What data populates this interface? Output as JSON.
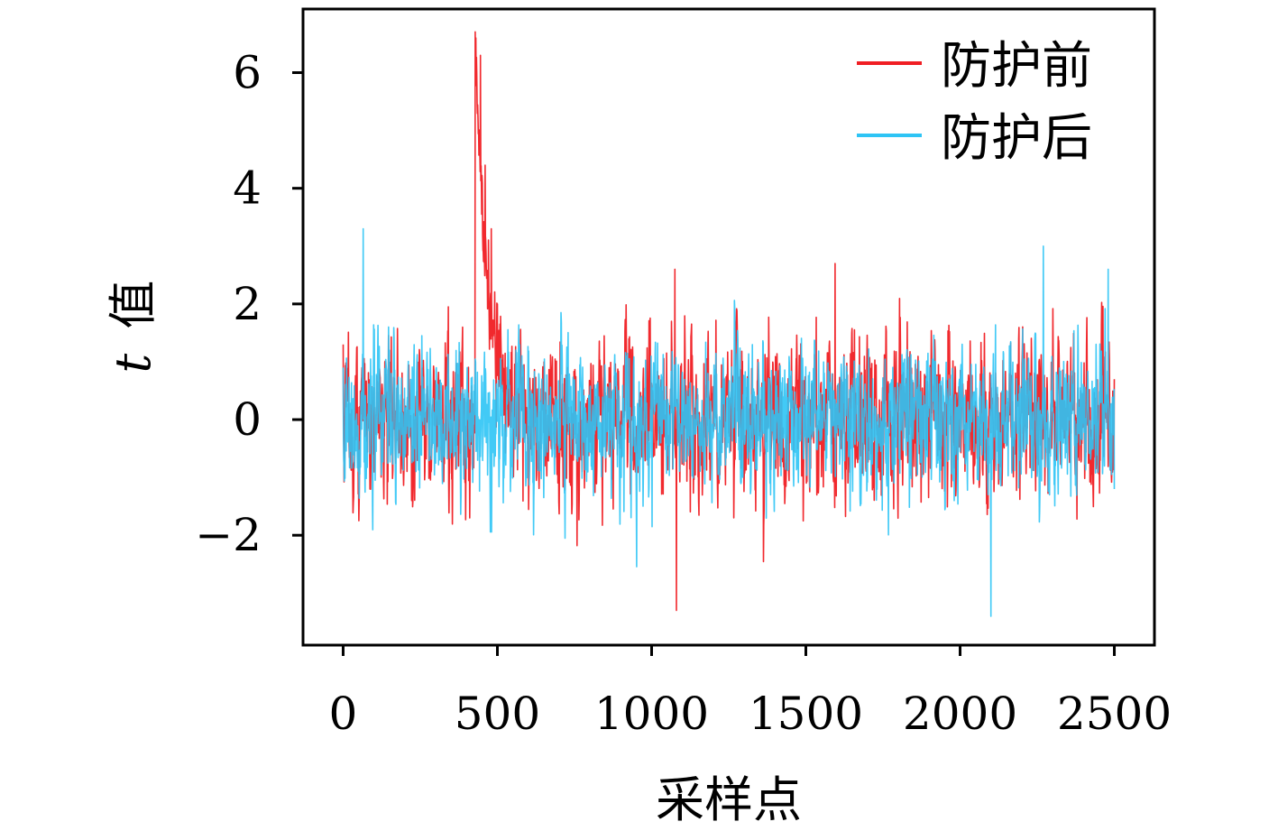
{
  "chart_data": {
    "type": "line",
    "title": "",
    "xlabel": "采样点",
    "ylabel": "t 值",
    "ylabel_italic_part": "t",
    "ylabel_rest": "值",
    "xlim": [
      -130,
      2630
    ],
    "ylim": [
      -3.9,
      7.1
    ],
    "xticks": [
      0,
      500,
      1000,
      1500,
      2000,
      2500
    ],
    "xtick_labels": [
      "0",
      "500",
      "1000",
      "1500",
      "2000",
      "2500"
    ],
    "yticks": [
      -2,
      0,
      2,
      4,
      6
    ],
    "ytick_labels": [
      "−2",
      "0",
      "2",
      "4",
      "6"
    ],
    "grid": false,
    "legend_position": "top-right",
    "n_points": 2500,
    "series": [
      {
        "name": "防护前",
        "color": "#f01e23",
        "noise_amplitude": 0.8,
        "notable_points": [
          {
            "x": 0,
            "y": 1.3
          },
          {
            "x": 410,
            "y": -1.7
          },
          {
            "x": 430,
            "y": 6.6
          },
          {
            "x": 445,
            "y": 6.3
          },
          {
            "x": 460,
            "y": 4.4
          },
          {
            "x": 480,
            "y": 3.3
          },
          {
            "x": 500,
            "y": 2.0
          },
          {
            "x": 1075,
            "y": 2.6
          },
          {
            "x": 1080,
            "y": -3.3
          },
          {
            "x": 1595,
            "y": 2.7
          },
          {
            "x": 2500,
            "y": 0.7
          }
        ]
      },
      {
        "name": "防护后",
        "color": "#2ec4f5",
        "noise_amplitude": 0.75,
        "notable_points": [
          {
            "x": 0,
            "y": 0.9
          },
          {
            "x": 65,
            "y": 3.3
          },
          {
            "x": 2100,
            "y": -3.4
          },
          {
            "x": 2270,
            "y": 3.0
          },
          {
            "x": 2480,
            "y": 2.6
          },
          {
            "x": 2500,
            "y": -1.2
          }
        ]
      }
    ]
  }
}
